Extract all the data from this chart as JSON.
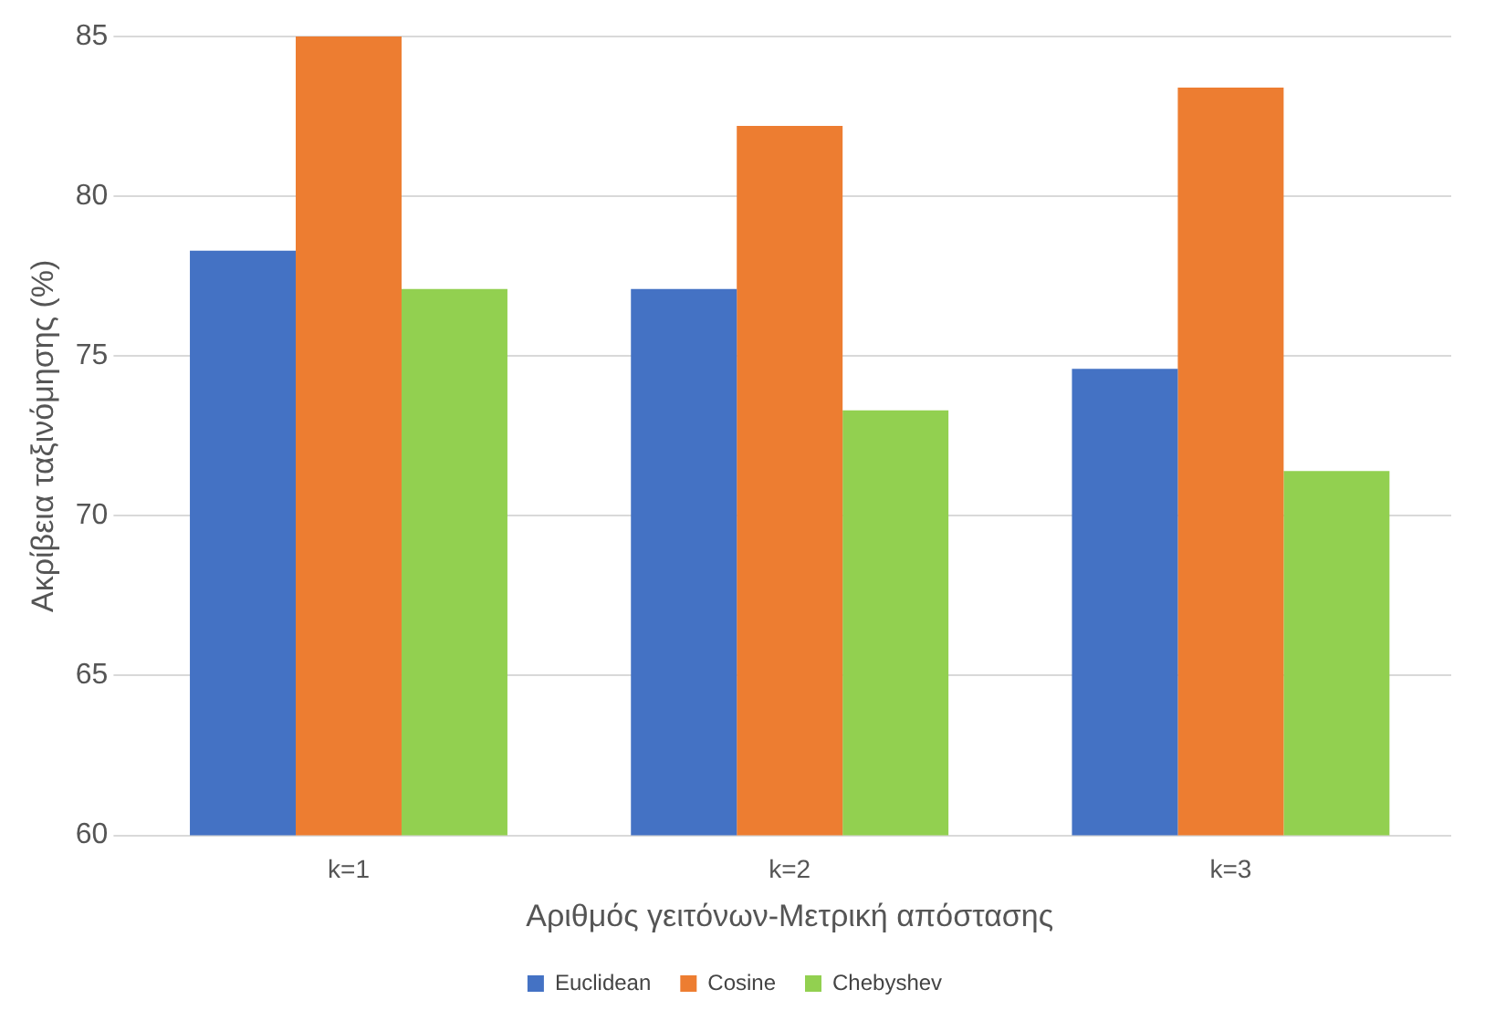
{
  "chart_data": {
    "type": "bar",
    "xlabel": "Αριθμός γειτόνων-Μετρική απόστασης",
    "ylabel": "Ακρίβεια ταξινόμησης (%)",
    "categories": [
      "k=1",
      "k=2",
      "k=3"
    ],
    "series": [
      {
        "name": "Euclidean",
        "color": "#4472c4",
        "values": [
          78.3,
          77.1,
          74.6
        ]
      },
      {
        "name": "Cosine",
        "color": "#ed7d31",
        "values": [
          85,
          82.2,
          83.4
        ]
      },
      {
        "name": "Chebyshev",
        "color": "#92d050",
        "values": [
          77.1,
          73.3,
          71.4
        ]
      }
    ],
    "ylim": [
      60,
      85
    ],
    "yticks": [
      60,
      65,
      70,
      75,
      80,
      85
    ],
    "grid": "y",
    "legend": "bottom"
  }
}
